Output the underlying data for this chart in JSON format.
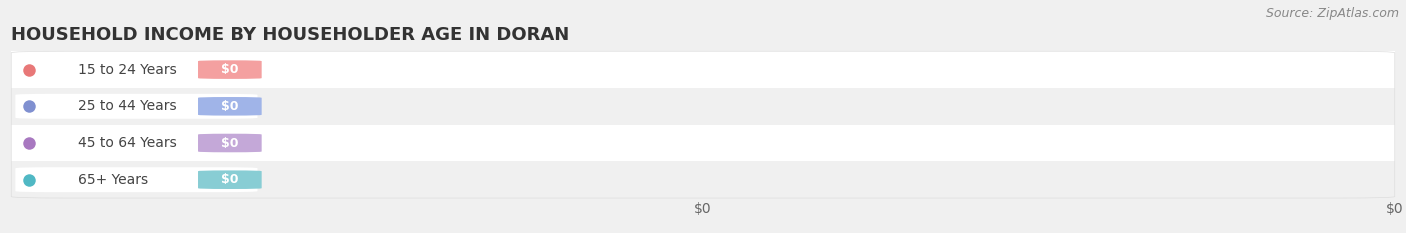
{
  "title": "HOUSEHOLD INCOME BY HOUSEHOLDER AGE IN DORAN",
  "source": "Source: ZipAtlas.com",
  "categories": [
    "15 to 24 Years",
    "25 to 44 Years",
    "45 to 64 Years",
    "65+ Years"
  ],
  "values": [
    0,
    0,
    0,
    0
  ],
  "bar_colors": [
    "#f4a0a0",
    "#a0b4e8",
    "#c4a8d8",
    "#88cdd4"
  ],
  "dot_colors": [
    "#e87878",
    "#8090d0",
    "#a878c0",
    "#50b8c4"
  ],
  "bg_color": "#f0f0f0",
  "chart_bg": "#ffffff",
  "row_bg": "#f0f0f0",
  "title_fontsize": 13,
  "source_fontsize": 9,
  "label_fontsize": 10,
  "badge_fontsize": 9,
  "tick_fontsize": 10
}
